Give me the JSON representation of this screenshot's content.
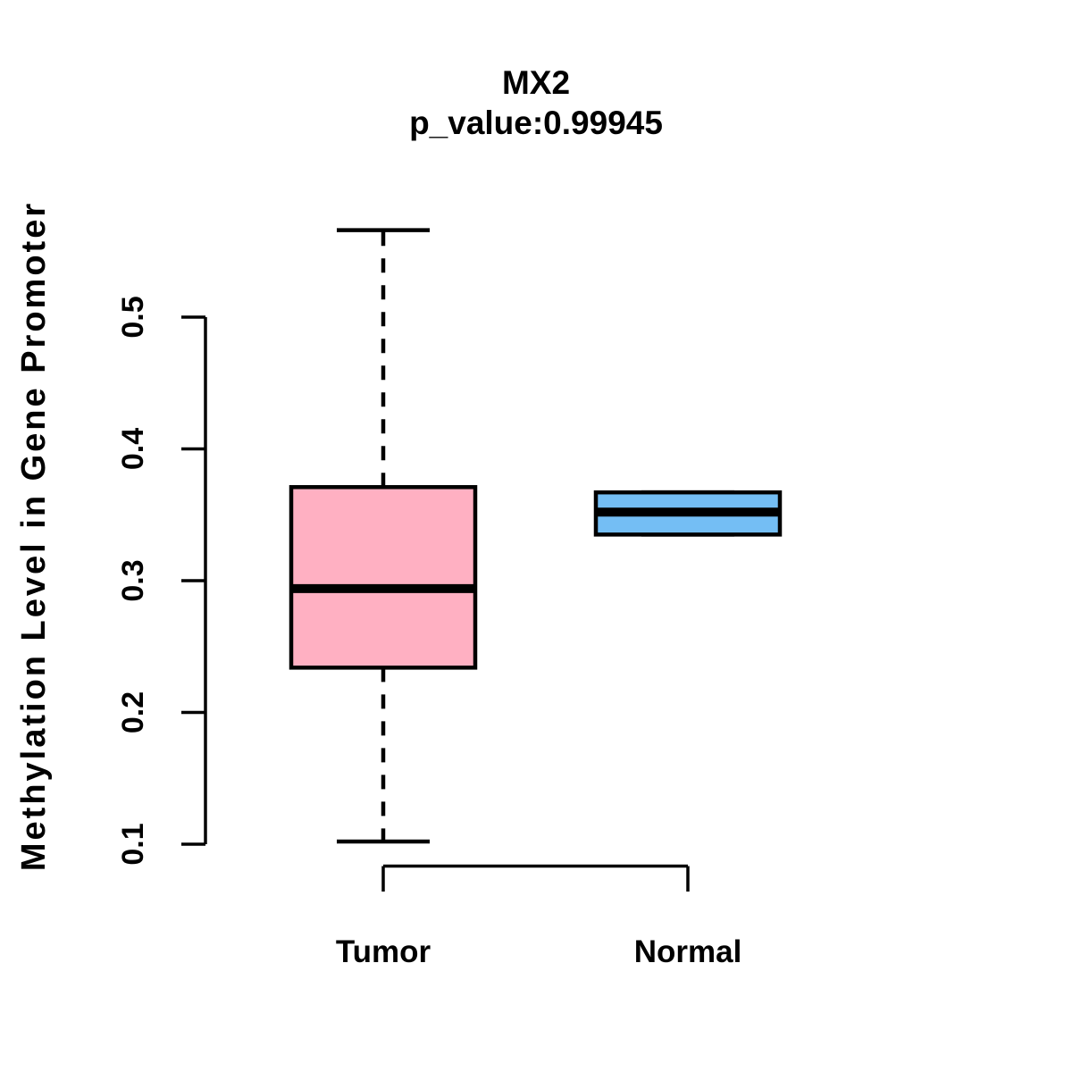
{
  "chart_data": {
    "type": "boxplot",
    "title": "MX2",
    "subtitle": "p_value:0.99945",
    "ylabel": "Methylation Level in Gene Promoter",
    "xlabel": "",
    "categories": [
      "Tumor",
      "Normal"
    ],
    "series": [
      {
        "name": "Tumor",
        "fill_color": "#FFB0C2",
        "whisker_low": 0.102,
        "q1": 0.234,
        "median": 0.294,
        "q3": 0.371,
        "whisker_high": 0.566,
        "whisker_style": "dashed"
      },
      {
        "name": "Normal",
        "fill_color": "#74BEF4",
        "whisker_low": 0.335,
        "q1": 0.335,
        "median": 0.352,
        "q3": 0.367,
        "whisker_high": 0.367,
        "whisker_style": "dashed"
      }
    ],
    "yticks": [
      0.1,
      0.2,
      0.3,
      0.4,
      0.5
    ],
    "ytick_labels": [
      "0.1",
      "0.2",
      "0.3",
      "0.4",
      "0.5"
    ],
    "ylim": [
      0.1,
      0.5
    ],
    "grid": false,
    "legend": "none",
    "stroke_color": "#000000",
    "background_color": "#FFFFFF"
  }
}
